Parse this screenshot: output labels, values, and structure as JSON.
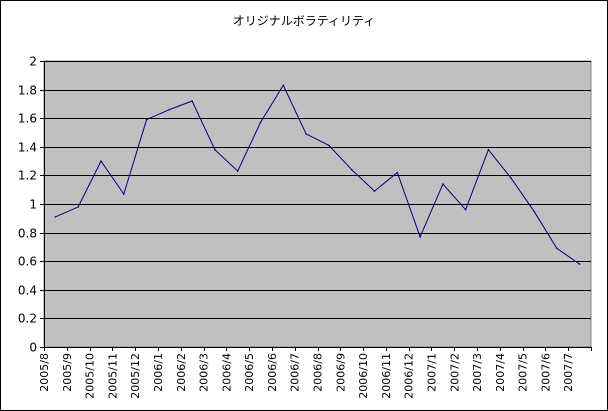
{
  "chart_data": {
    "type": "line",
    "title": "オリジナルボラティリティ",
    "xlabel": "",
    "ylabel": "",
    "ylim": [
      0,
      2
    ],
    "y_ticks": [
      "0",
      "0.2",
      "0.4",
      "0.6",
      "0.8",
      "1",
      "1.2",
      "1.4",
      "1.6",
      "1.8",
      "2"
    ],
    "categories": [
      "2005/8",
      "2005/9",
      "2005/10",
      "2005/11",
      "2005/12",
      "2006/1",
      "2006/2",
      "2006/3",
      "2006/4",
      "2006/5",
      "2006/6",
      "2006/7",
      "2006/8",
      "2006/9",
      "2006/10",
      "2006/11",
      "2006/12",
      "2007/1",
      "2007/2",
      "2007/3",
      "2007/4",
      "2007/5",
      "2007/6",
      "2007/7"
    ],
    "series": [
      {
        "x": [
          "2005/8",
          "2005/9",
          "2005/10",
          "2005/11",
          "2005/12",
          "2006/1",
          "2006/2",
          "2006/3",
          "2006/4",
          "2006/5",
          "2006/6",
          "2006/7",
          "2006/8",
          "2006/9",
          "2006/10",
          "2006/11",
          "2006/12",
          "2007/1",
          "2007/2",
          "2007/3",
          "2007/4",
          "2007/5",
          "2007/6",
          "2007/7"
        ],
        "values": [
          0.91,
          0.98,
          1.3,
          1.07,
          1.59,
          1.66,
          1.72,
          1.38,
          1.23,
          1.57,
          1.83,
          1.49,
          1.41,
          1.24,
          1.09,
          1.22,
          0.77,
          1.14,
          0.96,
          1.38,
          1.18,
          0.95,
          0.69,
          0.58
        ],
        "x_offset": 0.5,
        "color": "#000080"
      }
    ],
    "grid": true,
    "legend": "none",
    "plot_background": "#c0c0c0",
    "gridline_color": "#000000"
  }
}
